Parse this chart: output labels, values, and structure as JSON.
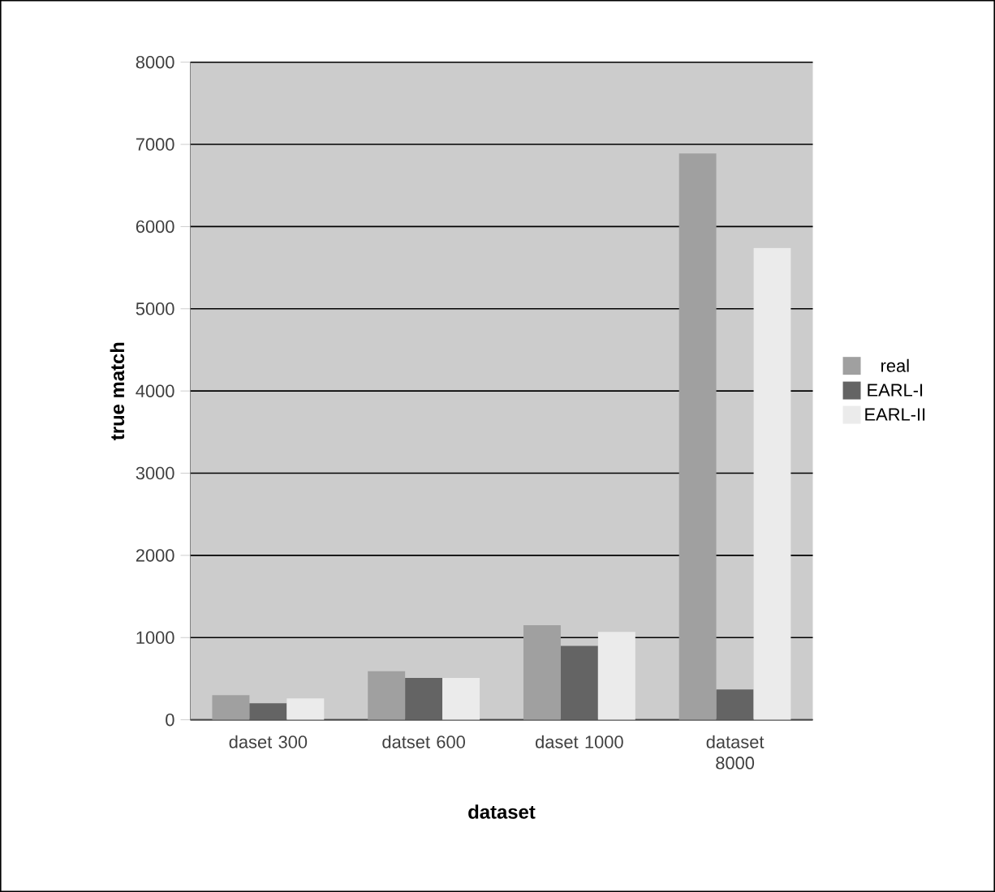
{
  "chart_data": {
    "type": "bar",
    "xlabel": "dataset",
    "ylabel": "true match",
    "categories": [
      "daset 300",
      "datset 600",
      "daset 1000",
      "dataset 8000"
    ],
    "series": [
      {
        "name": "real",
        "color": "#a0a0a0",
        "values": [
          300,
          590,
          1150,
          6890
        ]
      },
      {
        "name": "EARL-I",
        "color": "#646464",
        "values": [
          200,
          510,
          900,
          370
        ]
      },
      {
        "name": "EARL-II",
        "color": "#ebebeb",
        "values": [
          260,
          510,
          1070,
          5740
        ]
      }
    ],
    "ylim": [
      0,
      8000
    ],
    "yticks": [
      0,
      1000,
      2000,
      3000,
      4000,
      5000,
      6000,
      7000,
      8000
    ],
    "grid": "y",
    "legend": "right"
  }
}
